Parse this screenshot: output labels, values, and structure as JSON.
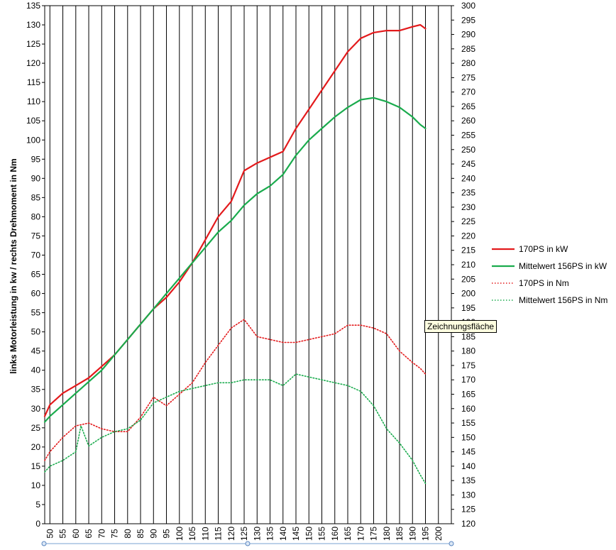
{
  "chart_data": {
    "type": "line",
    "ylabel": "links Motorleistung in kw / rechts Drehmoment in Nm",
    "x_ticks": [
      50,
      55,
      60,
      65,
      70,
      75,
      80,
      85,
      90,
      95,
      100,
      105,
      110,
      115,
      120,
      125,
      130,
      135,
      140,
      145,
      150,
      155,
      160,
      165,
      170,
      175,
      180,
      185,
      190,
      195,
      200
    ],
    "xlim": [
      48,
      205
    ],
    "ylim_left": [
      0,
      135
    ],
    "ylim_right": [
      120,
      300
    ],
    "y_step_left": 5,
    "y_step_right": 5,
    "grid": "vertical",
    "legend_position": "right",
    "series": [
      {
        "name": "170PS in kW",
        "axis": "left",
        "style": "solid",
        "color": "#e31a1c",
        "x": [
          48,
          50,
          55,
          60,
          65,
          70,
          75,
          80,
          85,
          90,
          95,
          100,
          105,
          110,
          115,
          120,
          125,
          130,
          135,
          140,
          145,
          150,
          155,
          160,
          165,
          170,
          175,
          180,
          185,
          190,
          193,
          195
        ],
        "y": [
          28,
          31,
          34,
          36,
          38,
          41,
          44,
          48,
          52,
          56,
          59,
          63,
          68,
          74,
          80,
          84,
          92,
          94,
          95.5,
          97,
          103,
          108,
          113,
          118,
          123,
          126.5,
          128,
          128.5,
          128.5,
          129.5,
          130,
          129
        ]
      },
      {
        "name": "Mittelwert 156PS in kW",
        "axis": "left",
        "style": "solid",
        "color": "#1aab4d",
        "x": [
          48,
          50,
          55,
          60,
          65,
          70,
          75,
          80,
          85,
          90,
          95,
          100,
          105,
          110,
          115,
          120,
          125,
          130,
          135,
          140,
          145,
          150,
          155,
          160,
          165,
          170,
          175,
          180,
          185,
          190,
          193,
          195
        ],
        "y": [
          26.5,
          28,
          31,
          34,
          37,
          40,
          44,
          48,
          52,
          56,
          60,
          64,
          68,
          72,
          76,
          79,
          83,
          86,
          88,
          91,
          96,
          100,
          103,
          106,
          108.5,
          110.5,
          111,
          110,
          108.5,
          106,
          104,
          103
        ]
      },
      {
        "name": "170PS in Nm",
        "axis": "right",
        "style": "dotted",
        "color": "#e31a1c",
        "x": [
          48,
          50,
          55,
          60,
          65,
          70,
          75,
          80,
          85,
          90,
          95,
          100,
          105,
          110,
          115,
          120,
          125,
          130,
          135,
          140,
          145,
          150,
          155,
          160,
          165,
          170,
          175,
          180,
          185,
          190,
          193,
          195
        ],
        "y": [
          142,
          145,
          150,
          154,
          155,
          153,
          152,
          152,
          157,
          164,
          161,
          165,
          169,
          176,
          182,
          188,
          191,
          185,
          184,
          183,
          183,
          184,
          185,
          186,
          189,
          189,
          188,
          186,
          180,
          176,
          174,
          172
        ]
      },
      {
        "name": "Mittelwert 156PS in Nm",
        "axis": "right",
        "style": "dotted",
        "color": "#1aab4d",
        "x": [
          48,
          50,
          55,
          60,
          62,
          65,
          70,
          75,
          80,
          85,
          90,
          95,
          100,
          105,
          110,
          115,
          120,
          125,
          130,
          135,
          140,
          145,
          150,
          155,
          160,
          165,
          170,
          175,
          180,
          185,
          190,
          193,
          195
        ],
        "y": [
          138,
          140,
          142,
          145,
          154,
          147,
          150,
          152,
          153,
          156,
          162,
          164,
          166,
          167,
          168,
          169,
          169,
          170,
          170,
          170,
          168,
          172,
          171,
          170,
          169,
          168,
          166,
          161,
          153,
          148,
          142,
          137,
          134
        ]
      }
    ]
  },
  "tooltip": {
    "text": "Zeichnungsfläche"
  }
}
